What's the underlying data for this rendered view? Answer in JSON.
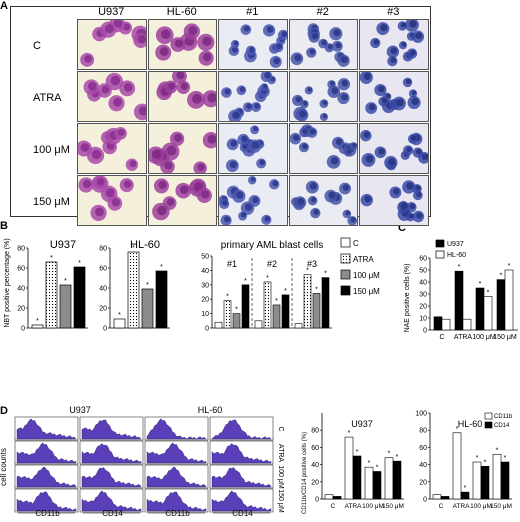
{
  "panels": {
    "A": "A",
    "B": "B",
    "C": "C",
    "D": "D"
  },
  "panelA": {
    "cols": [
      "U937",
      "HL-60",
      "#1",
      "#2",
      "#3"
    ],
    "rows": [
      "C",
      "ATRA",
      "100 μM",
      "150 μM"
    ]
  },
  "panelB": {
    "ylabel": "NBT positive percentage (%)",
    "u937": {
      "title": "U937",
      "values": [
        3,
        66,
        43,
        61
      ],
      "ylim": [
        0,
        80
      ],
      "ticks": [
        "0",
        "20",
        "40",
        "60",
        "80"
      ]
    },
    "hl60": {
      "title": "HL-60",
      "values": [
        9,
        76,
        39,
        57
      ],
      "ylim": [
        0,
        80
      ],
      "ticks": [
        "0",
        "20",
        "40",
        "60",
        "80"
      ]
    },
    "primary": {
      "title": "primary AML blast cells",
      "groups": [
        "#1",
        "#2",
        "#3"
      ],
      "values": [
        [
          4,
          19,
          10,
          30
        ],
        [
          5,
          32,
          16,
          23
        ],
        [
          3,
          37,
          24,
          35
        ]
      ],
      "ylim": [
        0,
        50
      ],
      "ticks": [
        "0",
        "10",
        "20",
        "30",
        "40",
        "50"
      ]
    },
    "legend": [
      "C",
      "ATRA",
      "100 μM",
      "150 μM"
    ]
  },
  "panelC": {
    "ylabel": "NAE positive cells (%)",
    "categories": [
      "C",
      "ATRA",
      "100 μM",
      "150 μM"
    ],
    "ylim": [
      0,
      60
    ],
    "ticks": [
      "0",
      "10",
      "20",
      "30",
      "40",
      "50",
      "60"
    ],
    "series": [
      {
        "name": "U937",
        "values": [
          11,
          49,
          35,
          42
        ]
      },
      {
        "name": "HL-60",
        "values": [
          9,
          9,
          28,
          50
        ]
      }
    ]
  },
  "panelD": {
    "flow_cols": [
      "U937",
      "HL-60"
    ],
    "markers": [
      "CD11b",
      "CD14",
      "CD11b",
      "CD14"
    ],
    "rows": [
      "C",
      "ATRA",
      "100 μM",
      "150 μM"
    ],
    "ylabel": "cell counts",
    "bar_ylabel": "CD11b/CD14 positive cells (%)",
    "u937": {
      "title": "U937",
      "categories": [
        "C",
        "ATRA",
        "100 μM",
        "150 μM"
      ],
      "ylim": [
        0,
        100
      ],
      "ticks": [
        "0",
        "20",
        "40",
        "60",
        "80"
      ],
      "series": [
        {
          "name": "CD11b",
          "values": [
            5,
            72,
            37,
            48
          ]
        },
        {
          "name": "CD14",
          "values": [
            3,
            50,
            32,
            44
          ]
        }
      ]
    },
    "hl60": {
      "title": "HL-60",
      "categories": [
        "C",
        "ATRA",
        "100 μM",
        "150 μM"
      ],
      "ylim": [
        0,
        100
      ],
      "ticks": [
        "0",
        "20",
        "40",
        "60",
        "80",
        "100"
      ],
      "series": [
        {
          "name": "CD11b",
          "values": [
            5,
            77,
            43,
            52
          ]
        },
        {
          "name": "CD14",
          "values": [
            3,
            8,
            38,
            43
          ]
        }
      ]
    }
  },
  "chart_data": [
    {
      "type": "bar",
      "title": "U937",
      "ylabel": "NBT positive percentage (%)",
      "categories": [
        "C",
        "ATRA",
        "100 μM",
        "150 μM"
      ],
      "values": [
        3,
        66,
        43,
        61
      ],
      "ylim": [
        0,
        80
      ]
    },
    {
      "type": "bar",
      "title": "HL-60",
      "categories": [
        "C",
        "ATRA",
        "100 μM",
        "150 μM"
      ],
      "values": [
        9,
        76,
        39,
        57
      ],
      "ylim": [
        0,
        80
      ]
    },
    {
      "type": "bar",
      "title": "primary AML blast cells",
      "categories": [
        "#1",
        "#2",
        "#3"
      ],
      "series": [
        {
          "name": "C",
          "values": [
            4,
            5,
            3
          ]
        },
        {
          "name": "ATRA",
          "values": [
            19,
            32,
            37
          ]
        },
        {
          "name": "100 μM",
          "values": [
            10,
            16,
            24
          ]
        },
        {
          "name": "150 μM",
          "values": [
            30,
            23,
            35
          ]
        }
      ],
      "ylim": [
        0,
        50
      ]
    },
    {
      "type": "bar",
      "ylabel": "NAE positive cells (%)",
      "categories": [
        "C",
        "ATRA",
        "100 μM",
        "150 μM"
      ],
      "series": [
        {
          "name": "U937",
          "values": [
            11,
            49,
            35,
            42
          ]
        },
        {
          "name": "HL-60",
          "values": [
            9,
            9,
            28,
            50
          ]
        }
      ],
      "ylim": [
        0,
        60
      ]
    },
    {
      "type": "bar",
      "title": "U937",
      "ylabel": "CD11b/CD14 positive cells (%)",
      "categories": [
        "C",
        "ATRA",
        "100 μM",
        "150 μM"
      ],
      "series": [
        {
          "name": "CD11b",
          "values": [
            5,
            72,
            37,
            48
          ]
        },
        {
          "name": "CD14",
          "values": [
            3,
            50,
            32,
            44
          ]
        }
      ],
      "ylim": [
        0,
        100
      ]
    },
    {
      "type": "bar",
      "title": "HL-60",
      "categories": [
        "C",
        "ATRA",
        "100 μM",
        "150 μM"
      ],
      "series": [
        {
          "name": "CD11b",
          "values": [
            5,
            77,
            43,
            52
          ]
        },
        {
          "name": "CD14",
          "values": [
            3,
            8,
            38,
            43
          ]
        }
      ],
      "ylim": [
        0,
        100
      ]
    }
  ]
}
